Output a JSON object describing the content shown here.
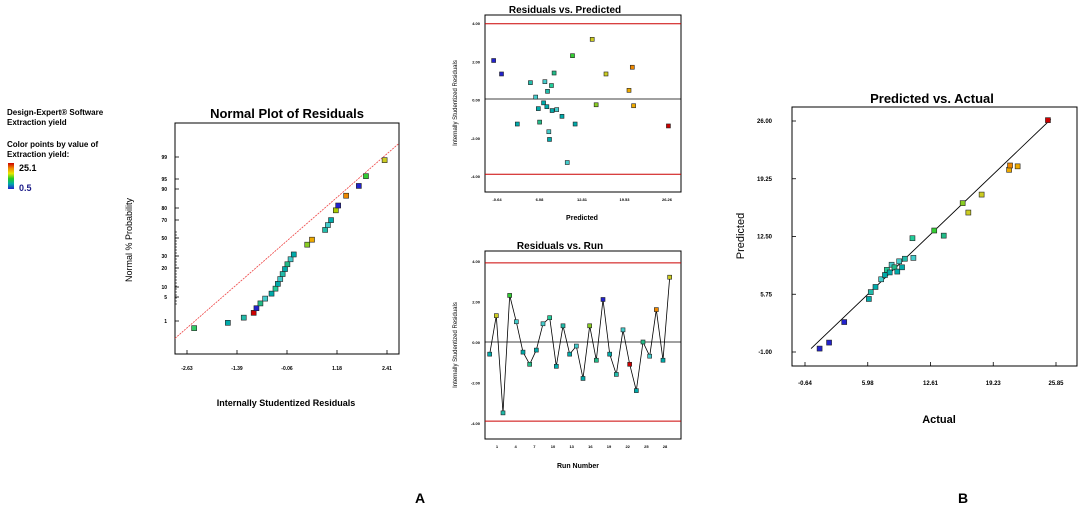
{
  "legend_panel": {
    "software": "Design-Expert® Software",
    "response": "Extraction yield",
    "color_note_1": "Color points by value of",
    "color_note_2": "Extraction yield:",
    "max_value": "25.1",
    "min_value": "0.5",
    "gradient_colors": [
      "#cc0000",
      "#ee8800",
      "#e8e800",
      "#22cc22",
      "#00aaaa",
      "#2222cc"
    ]
  },
  "panel_labels": {
    "left": "A",
    "right": "B"
  },
  "chart_data": [
    {
      "id": "normal",
      "type": "scatter",
      "title": "Normal Plot of Residuals",
      "xlabel": "Internally Studentized Residuals",
      "ylabel": "Normal % Probability",
      "xlim": [
        -2.63,
        2.41
      ],
      "ylim": [
        0,
        100
      ],
      "x_ticks": [
        "-2.63",
        "-1.39",
        "-0.06",
        "1.18",
        "2.41"
      ],
      "y_ticks": [
        "1",
        "5",
        "10",
        "20",
        "30",
        "50",
        "70",
        "80",
        "90",
        "95",
        "99"
      ],
      "ref_line": [
        [
          -2.63,
          1.5
        ],
        [
          2.41,
          99.8
        ]
      ],
      "ref_line_color": "#ee4444",
      "points": [
        {
          "x": -2.45,
          "y": 1.6,
          "c": "#33cc66"
        },
        {
          "x": -1.6,
          "y": 4.6,
          "c": "#00aaaa"
        },
        {
          "x": -1.2,
          "y": 7.5,
          "c": "#22bbaa"
        },
        {
          "x": -0.95,
          "y": 10.2,
          "c": "#cc0000"
        },
        {
          "x": -0.88,
          "y": 12.8,
          "c": "#2222cc"
        },
        {
          "x": -0.78,
          "y": 15.5,
          "c": "#22bb88"
        },
        {
          "x": -0.66,
          "y": 18.2,
          "c": "#44cccc"
        },
        {
          "x": -0.5,
          "y": 21.0,
          "c": "#00aaaa"
        },
        {
          "x": -0.4,
          "y": 23.8,
          "c": "#22cc99"
        },
        {
          "x": -0.34,
          "y": 26.5,
          "c": "#00aaaa"
        },
        {
          "x": -0.28,
          "y": 29.2,
          "c": "#44cccc"
        },
        {
          "x": -0.22,
          "y": 32.0,
          "c": "#22bbaa"
        },
        {
          "x": -0.16,
          "y": 34.8,
          "c": "#00aaaa"
        },
        {
          "x": -0.1,
          "y": 37.5,
          "c": "#22bb88"
        },
        {
          "x": -0.02,
          "y": 40.3,
          "c": "#44cccc"
        },
        {
          "x": 0.06,
          "y": 43.0,
          "c": "#00aaaa"
        },
        {
          "x": 0.4,
          "y": 48.5,
          "c": "#88cc22"
        },
        {
          "x": 0.52,
          "y": 51.3,
          "c": "#eeaa00"
        },
        {
          "x": 0.85,
          "y": 56.8,
          "c": "#22bbaa"
        },
        {
          "x": 0.92,
          "y": 59.5,
          "c": "#44cccc"
        },
        {
          "x": 1.0,
          "y": 62.3,
          "c": "#00aaaa"
        },
        {
          "x": 1.12,
          "y": 67.8,
          "c": "#aacc00"
        },
        {
          "x": 1.18,
          "y": 70.5,
          "c": "#2222cc"
        },
        {
          "x": 1.38,
          "y": 76.0,
          "c": "#ee8800"
        },
        {
          "x": 1.7,
          "y": 81.5,
          "c": "#2222cc"
        },
        {
          "x": 1.88,
          "y": 87.0,
          "c": "#33cc33"
        },
        {
          "x": 2.35,
          "y": 96.0,
          "c": "#cccc22"
        }
      ]
    },
    {
      "id": "resid-pred",
      "type": "scatter",
      "title": "Residuals vs. Predicted",
      "xlabel": "Predicted",
      "ylabel": "Internally Studentized Residuals",
      "xlim": [
        0,
        28
      ],
      "ylim": [
        -4.0,
        4.0
      ],
      "x_ticks": [
        "-0.64",
        "6.08",
        "12.81",
        "19.53",
        "26.26"
      ],
      "y_ticks": [
        "4.00",
        "2.00",
        "0.00",
        "-2.00",
        "-4.00"
      ],
      "limits": [
        3.91,
        -3.91
      ],
      "limit_color": "#cc0000",
      "points": [
        {
          "x": 0.4,
          "y": 2.0,
          "c": "#2222cc"
        },
        {
          "x": 1.6,
          "y": 1.3,
          "c": "#2222cc"
        },
        {
          "x": 4.0,
          "y": -1.3,
          "c": "#00aaaa"
        },
        {
          "x": 6.0,
          "y": 0.85,
          "c": "#22bbaa"
        },
        {
          "x": 6.8,
          "y": 0.1,
          "c": "#44cccc"
        },
        {
          "x": 7.2,
          "y": -0.5,
          "c": "#00aaaa"
        },
        {
          "x": 7.4,
          "y": -1.2,
          "c": "#22bb88"
        },
        {
          "x": 8.0,
          "y": -0.2,
          "c": "#00aaaa"
        },
        {
          "x": 8.2,
          "y": 0.9,
          "c": "#44cccc"
        },
        {
          "x": 8.5,
          "y": -0.4,
          "c": "#00aaaa"
        },
        {
          "x": 8.6,
          "y": 0.4,
          "c": "#22bbaa"
        },
        {
          "x": 8.8,
          "y": -1.7,
          "c": "#44cccc"
        },
        {
          "x": 8.9,
          "y": -2.1,
          "c": "#00aaaa"
        },
        {
          "x": 9.2,
          "y": 0.7,
          "c": "#22cc99"
        },
        {
          "x": 9.3,
          "y": -0.6,
          "c": "#00aaaa"
        },
        {
          "x": 9.6,
          "y": 1.35,
          "c": "#22bb88"
        },
        {
          "x": 10.0,
          "y": -0.55,
          "c": "#44cccc"
        },
        {
          "x": 10.8,
          "y": -0.9,
          "c": "#00aaaa"
        },
        {
          "x": 11.6,
          "y": -3.3,
          "c": "#44cccc"
        },
        {
          "x": 12.4,
          "y": 2.25,
          "c": "#33cc33"
        },
        {
          "x": 12.8,
          "y": -1.3,
          "c": "#00aaaa"
        },
        {
          "x": 15.4,
          "y": 3.1,
          "c": "#cccc22"
        },
        {
          "x": 16.0,
          "y": -0.3,
          "c": "#88cc22"
        },
        {
          "x": 17.5,
          "y": 1.3,
          "c": "#cccc22"
        },
        {
          "x": 21.0,
          "y": 0.45,
          "c": "#eeaa00"
        },
        {
          "x": 21.5,
          "y": 1.65,
          "c": "#ee8800"
        },
        {
          "x": 21.7,
          "y": -0.35,
          "c": "#eeaa00"
        },
        {
          "x": 27.0,
          "y": -1.4,
          "c": "#cc0000"
        }
      ]
    },
    {
      "id": "resid-run",
      "type": "line",
      "title": "Residuals vs. Run",
      "xlabel": "Run Number",
      "ylabel": "Internally Studentized Residuals",
      "xlim": [
        0,
        30
      ],
      "ylim": [
        -4.0,
        4.0
      ],
      "x_ticks": [
        "1",
        "4",
        "7",
        "10",
        "13",
        "16",
        "19",
        "22",
        "25",
        "28"
      ],
      "y_ticks": [
        "4.00",
        "2.00",
        "0.00",
        "-2.00",
        "-4.00"
      ],
      "limits": [
        3.91,
        -3.91
      ],
      "limit_color": "#cc0000",
      "runs": [
        1,
        2,
        3,
        4,
        5,
        6,
        7,
        8,
        9,
        10,
        11,
        12,
        13,
        14,
        15,
        16,
        17,
        18,
        19,
        20,
        21,
        22,
        23,
        24,
        25,
        26,
        27,
        28
      ],
      "values": [
        -0.6,
        1.3,
        -3.5,
        2.3,
        1.0,
        -0.5,
        -1.1,
        -0.4,
        0.9,
        1.2,
        -1.2,
        0.8,
        -0.6,
        -0.2,
        -1.8,
        0.8,
        -0.9,
        2.1,
        -0.6,
        -1.6,
        0.6,
        -1.1,
        -2.4,
        0.0,
        -0.7,
        1.6,
        -0.9,
        3.2
      ],
      "colors": [
        "#00aaaa",
        "#cccc22",
        "#22bbaa",
        "#33cc33",
        "#44cccc",
        "#00aaaa",
        "#22bb88",
        "#00aaaa",
        "#44cccc",
        "#22cc99",
        "#00aaaa",
        "#22bbaa",
        "#00aaaa",
        "#44cccc",
        "#00aaaa",
        "#88cc22",
        "#22bb88",
        "#2222cc",
        "#00aaaa",
        "#22bbaa",
        "#44cccc",
        "#cc0000",
        "#00aaaa",
        "#22bb88",
        "#44cccc",
        "#ee8800",
        "#00aaaa",
        "#cccc22"
      ]
    },
    {
      "id": "pred-actual",
      "type": "scatter",
      "title": "Predicted vs. Actual",
      "xlabel": "Actual",
      "ylabel": "Predicted",
      "xlim": [
        -0.64,
        25.85
      ],
      "ylim": [
        -1.0,
        26.0
      ],
      "x_ticks": [
        "-0.64",
        "5.98",
        "12.61",
        "19.23",
        "25.85"
      ],
      "y_ticks": [
        "-1.00",
        "5.75",
        "12.50",
        "19.25",
        "26.00"
      ],
      "ref_line": [
        [
          0.0,
          -0.6
        ],
        [
          25.3,
          26.2
        ]
      ],
      "ref_line_color": "#000000",
      "points": [
        {
          "x": 0.9,
          "y": -0.6,
          "c": "#2222cc"
        },
        {
          "x": 1.9,
          "y": 0.1,
          "c": "#2222cc"
        },
        {
          "x": 3.5,
          "y": 2.5,
          "c": "#2222cc"
        },
        {
          "x": 6.1,
          "y": 5.2,
          "c": "#00aaaa"
        },
        {
          "x": 6.3,
          "y": 6.0,
          "c": "#22bbaa"
        },
        {
          "x": 6.8,
          "y": 6.6,
          "c": "#00aaaa"
        },
        {
          "x": 7.4,
          "y": 7.5,
          "c": "#44cccc"
        },
        {
          "x": 7.8,
          "y": 8.0,
          "c": "#00aaaa"
        },
        {
          "x": 8.0,
          "y": 8.6,
          "c": "#22cc99"
        },
        {
          "x": 8.3,
          "y": 8.3,
          "c": "#00aaaa"
        },
        {
          "x": 8.5,
          "y": 9.2,
          "c": "#44cccc"
        },
        {
          "x": 8.8,
          "y": 8.9,
          "c": "#22bb88"
        },
        {
          "x": 9.1,
          "y": 8.4,
          "c": "#00aaaa"
        },
        {
          "x": 9.3,
          "y": 9.6,
          "c": "#44cccc"
        },
        {
          "x": 9.6,
          "y": 8.9,
          "c": "#00aaaa"
        },
        {
          "x": 9.9,
          "y": 9.9,
          "c": "#22bbaa"
        },
        {
          "x": 10.8,
          "y": 10.0,
          "c": "#44cccc"
        },
        {
          "x": 10.7,
          "y": 12.3,
          "c": "#22cc99"
        },
        {
          "x": 13.0,
          "y": 13.2,
          "c": "#33cc33"
        },
        {
          "x": 14.0,
          "y": 12.6,
          "c": "#22bb88"
        },
        {
          "x": 16.0,
          "y": 16.4,
          "c": "#88cc22"
        },
        {
          "x": 16.6,
          "y": 15.3,
          "c": "#cccc22"
        },
        {
          "x": 18.0,
          "y": 17.4,
          "c": "#cccc22"
        },
        {
          "x": 20.9,
          "y": 20.3,
          "c": "#eeaa00"
        },
        {
          "x": 21.0,
          "y": 20.8,
          "c": "#ee8800"
        },
        {
          "x": 21.8,
          "y": 20.7,
          "c": "#eeaa00"
        },
        {
          "x": 25.0,
          "y": 26.1,
          "c": "#cc0000"
        }
      ]
    }
  ]
}
